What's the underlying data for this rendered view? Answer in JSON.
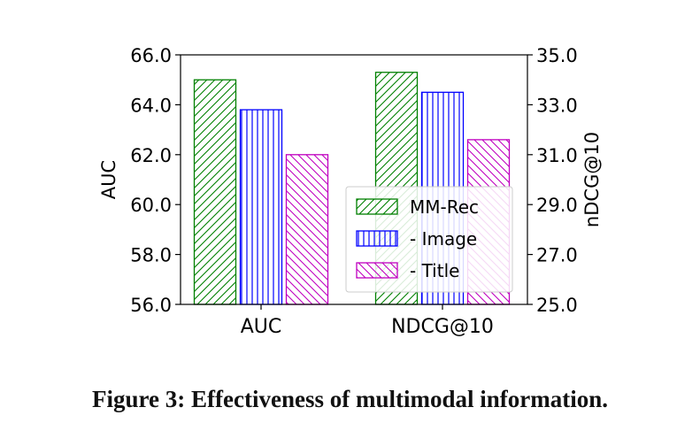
{
  "figure": {
    "caption": "Figure 3: Effectiveness of multimodal information."
  },
  "chart_data": {
    "type": "bar",
    "categories": [
      "AUC",
      "NDCG@10"
    ],
    "series": [
      {
        "name": "MM-Rec",
        "values": [
          65.0,
          34.3
        ],
        "color": "#008000",
        "hatch": "diagonal-right"
      },
      {
        "name": "- Image",
        "values": [
          63.8,
          33.5
        ],
        "color": "#0000ff",
        "hatch": "vertical"
      },
      {
        "name": "- Title",
        "values": [
          62.0,
          31.6
        ],
        "color": "#c000c0",
        "hatch": "diagonal-left"
      }
    ],
    "axes": {
      "left": {
        "label": "AUC",
        "ylim": [
          56.0,
          66.0
        ],
        "ticks": [
          "56.0",
          "58.0",
          "60.0",
          "62.0",
          "64.0",
          "66.0"
        ],
        "applies_to": "AUC"
      },
      "right": {
        "label": "nDCG@10",
        "ylim": [
          25.0,
          35.0
        ],
        "ticks": [
          "25.0",
          "27.0",
          "29.0",
          "31.0",
          "33.0",
          "35.0"
        ],
        "applies_to": "NDCG@10"
      }
    },
    "grid": false,
    "legend_position": "lower-right"
  }
}
